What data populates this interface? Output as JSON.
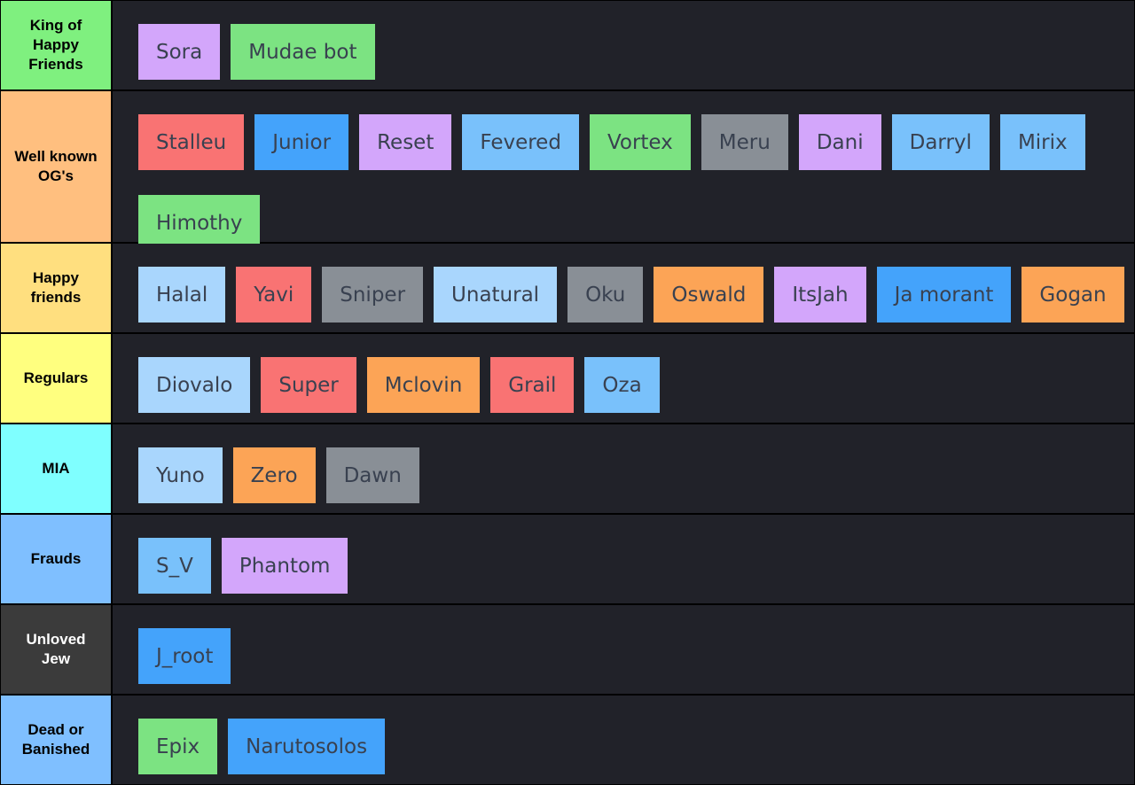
{
  "tiers": [
    {
      "label": "King of\nHappy\nFriends",
      "color": "#7ff07f",
      "items": [
        {
          "name": "Sora",
          "color": "#d3a6fb"
        },
        {
          "name": "Mudae bot",
          "color": "#7ce382"
        }
      ]
    },
    {
      "label": "Well known\nOG's",
      "color": "#ffbf7f",
      "items": [
        {
          "name": "Stalleu",
          "color": "#f97373"
        },
        {
          "name": "Junior",
          "color": "#44a3fb"
        },
        {
          "name": "Reset",
          "color": "#d3a6fb"
        },
        {
          "name": "Fevered",
          "color": "#79c1fb"
        },
        {
          "name": "Vortex",
          "color": "#7ce382"
        },
        {
          "name": "Meru",
          "color": "#898f96"
        },
        {
          "name": "Dani",
          "color": "#d3a6fb"
        },
        {
          "name": "Darryl",
          "color": "#79c1fb"
        },
        {
          "name": "Mirix",
          "color": "#79c1fb"
        },
        {
          "name": "Himothy",
          "color": "#7ce382"
        }
      ]
    },
    {
      "label": "Happy\nfriends",
      "color": "#ffdf7f",
      "items": [
        {
          "name": "Halal",
          "color": "#a9d6fd"
        },
        {
          "name": "Yavi",
          "color": "#f97373"
        },
        {
          "name": "Sniper",
          "color": "#898f96"
        },
        {
          "name": "Unatural",
          "color": "#a9d6fd"
        },
        {
          "name": "Oku",
          "color": "#898f96"
        },
        {
          "name": "Oswald",
          "color": "#fca456"
        },
        {
          "name": "ItsJah",
          "color": "#d3a6fb"
        },
        {
          "name": "Ja morant",
          "color": "#44a3fb"
        },
        {
          "name": "Gogan",
          "color": "#fca456"
        }
      ]
    },
    {
      "label": "Regulars",
      "color": "#ffff7f",
      "items": [
        {
          "name": "Diovalo",
          "color": "#a9d6fd"
        },
        {
          "name": "Super",
          "color": "#f97373"
        },
        {
          "name": "Mclovin",
          "color": "#fca456"
        },
        {
          "name": "Grail",
          "color": "#f97373"
        },
        {
          "name": "Oza",
          "color": "#79c1fb"
        }
      ]
    },
    {
      "label": "MIA",
      "color": "#7fffff",
      "items": [
        {
          "name": "Yuno",
          "color": "#a9d6fd"
        },
        {
          "name": "Zero",
          "color": "#fca456"
        },
        {
          "name": "Dawn",
          "color": "#898f96"
        }
      ]
    },
    {
      "label": "Frauds",
      "color": "#7fbfff",
      "items": [
        {
          "name": "S_V",
          "color": "#79c1fb"
        },
        {
          "name": "Phantom",
          "color": "#d3a6fb"
        }
      ]
    },
    {
      "label": "Unloved\nJew",
      "color": "#3b3b3b",
      "label_text_color": "#ffffff",
      "items": [
        {
          "name": "J_root",
          "color": "#44a3fb"
        }
      ]
    },
    {
      "label": "Dead or\nBanished",
      "color": "#7fbfff",
      "items": [
        {
          "name": "Epix",
          "color": "#7ce382"
        },
        {
          "name": "Narutosolos",
          "color": "#44a3fb"
        }
      ]
    }
  ]
}
